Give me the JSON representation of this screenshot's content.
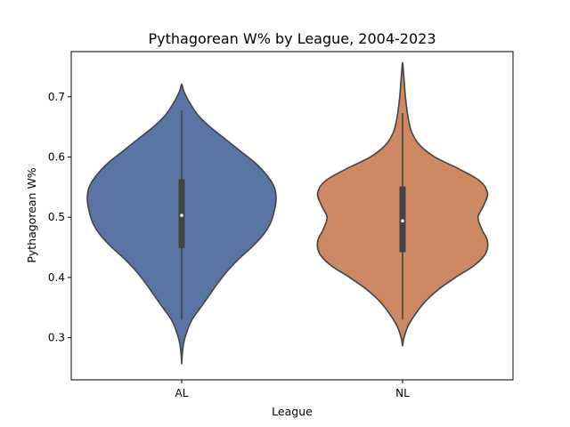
{
  "chart_data": {
    "type": "violin",
    "title": "Pythagorean W% by League, 2004-2023",
    "xlabel": "League",
    "ylabel": "Pythagorean W%",
    "categories": [
      "AL",
      "NL"
    ],
    "ylim": [
      0.23,
      0.775
    ],
    "yticks": [
      0.3,
      0.4,
      0.5,
      0.6,
      0.7
    ],
    "ytick_labels": [
      "0.3",
      "0.4",
      "0.5",
      "0.6",
      "0.7"
    ],
    "grid": false,
    "colors": {
      "AL": "#5875a4",
      "NL": "#cc8963",
      "outline": "#444444",
      "box": "#444444",
      "median": "#ffffff"
    },
    "series": [
      {
        "category": "AL",
        "min": 0.256,
        "max": 0.721,
        "q1": 0.449,
        "median": 0.503,
        "q3": 0.563,
        "whisker_low": 0.33,
        "whisker_high": 0.677,
        "density_profile": [
          [
            0.256,
            0.0
          ],
          [
            0.27,
            0.005
          ],
          [
            0.29,
            0.02
          ],
          [
            0.31,
            0.055
          ],
          [
            0.33,
            0.11
          ],
          [
            0.35,
            0.2
          ],
          [
            0.37,
            0.29
          ],
          [
            0.39,
            0.38
          ],
          [
            0.41,
            0.48
          ],
          [
            0.43,
            0.6
          ],
          [
            0.45,
            0.74
          ],
          [
            0.47,
            0.86
          ],
          [
            0.49,
            0.94
          ],
          [
            0.51,
            0.98
          ],
          [
            0.53,
            1.0
          ],
          [
            0.55,
            0.98
          ],
          [
            0.57,
            0.9
          ],
          [
            0.59,
            0.78
          ],
          [
            0.61,
            0.62
          ],
          [
            0.63,
            0.46
          ],
          [
            0.65,
            0.3
          ],
          [
            0.67,
            0.17
          ],
          [
            0.69,
            0.085
          ],
          [
            0.7,
            0.05
          ],
          [
            0.71,
            0.02
          ],
          [
            0.721,
            0.0
          ]
        ]
      },
      {
        "category": "NL",
        "min": 0.286,
        "max": 0.757,
        "q1": 0.442,
        "median": 0.494,
        "q3": 0.551,
        "whisker_low": 0.33,
        "whisker_high": 0.673,
        "density_profile": [
          [
            0.286,
            0.0
          ],
          [
            0.3,
            0.015
          ],
          [
            0.32,
            0.06
          ],
          [
            0.34,
            0.14
          ],
          [
            0.36,
            0.24
          ],
          [
            0.38,
            0.38
          ],
          [
            0.4,
            0.56
          ],
          [
            0.42,
            0.76
          ],
          [
            0.44,
            0.88
          ],
          [
            0.46,
            0.9
          ],
          [
            0.48,
            0.84
          ],
          [
            0.5,
            0.8
          ],
          [
            0.52,
            0.86
          ],
          [
            0.54,
            0.9
          ],
          [
            0.56,
            0.82
          ],
          [
            0.58,
            0.6
          ],
          [
            0.6,
            0.34
          ],
          [
            0.62,
            0.18
          ],
          [
            0.64,
            0.1
          ],
          [
            0.66,
            0.065
          ],
          [
            0.68,
            0.045
          ],
          [
            0.7,
            0.03
          ],
          [
            0.72,
            0.02
          ],
          [
            0.74,
            0.01
          ],
          [
            0.757,
            0.0
          ]
        ]
      }
    ]
  }
}
